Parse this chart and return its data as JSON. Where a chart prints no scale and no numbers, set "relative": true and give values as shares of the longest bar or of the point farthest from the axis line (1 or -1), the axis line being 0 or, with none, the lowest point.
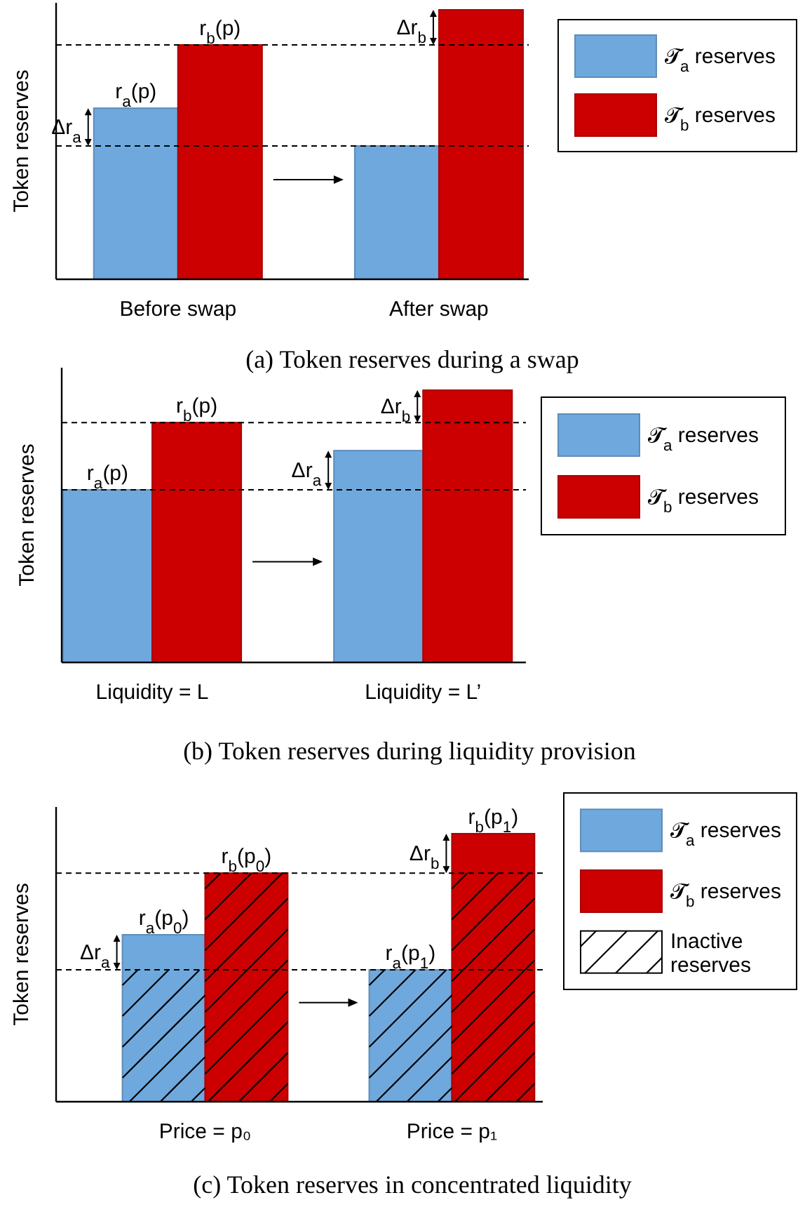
{
  "chart_data": [
    {
      "type": "bar",
      "title": "(a) Token reserves during a swap",
      "ylabel": "Token reserves",
      "relative": true,
      "tick_labels": "x",
      "legend": "right",
      "categories": [
        "Before swap",
        "After swap"
      ],
      "series": [
        {
          "name": "𝓣$_{a}$ reserves",
          "color": "#6fa8dc",
          "values": [
            0.635,
            0.495
          ]
        },
        {
          "name": "𝓣$_{b}$  reserves",
          "color": "#cc0000",
          "values": [
            0.87,
            1
          ]
        }
      ],
      "ref_lines": [
        {
          "axis": "y",
          "value": 0.87,
          "line_style": "dashed",
          "label": "Δr$_{b}$"
        },
        {
          "axis": "y",
          "value": 0.495,
          "line_style": "dashed",
          "label": "Δr$_{a}$"
        }
      ],
      "annotations": [
        {
          "text": "r$_{a}$(p)",
          "x": "Before swap",
          "y": 0.635
        },
        {
          "text": "r$_{b}$(p)",
          "x": "Before swap",
          "y": 0.87
        }
      ]
    },
    {
      "type": "bar",
      "title": "(b) Token reserves during liquidity provision",
      "ylabel": "Token reserves",
      "relative": true,
      "tick_labels": "x",
      "legend": "right",
      "categories": [
        "Liquidity = L",
        "Liquidity = L’"
      ],
      "series": [
        {
          "name": "𝓣$_{a}$ reserves",
          "color": "#6fa8dc",
          "values": [
            0.634,
            0.778
          ]
        },
        {
          "name": "𝓣$_{b}$ reserves",
          "color": "#cc0000",
          "values": [
            0.881,
            1
          ]
        }
      ],
      "ref_lines": [
        {
          "axis": "y",
          "value": 0.881,
          "line_style": "dashed",
          "label": "Δr$_{b}$"
        },
        {
          "axis": "y",
          "value": 0.634,
          "line_style": "dashed",
          "label": "Δr$_{a}$"
        }
      ],
      "annotations": [
        {
          "text": "r$_{a}$(p)",
          "x": "Liquidity = L",
          "y": 0.634
        },
        {
          "text": "r$_{b}$(p)",
          "x": "Liquidity = L",
          "y": 0.881
        }
      ]
    },
    {
      "type": "bar",
      "title": "(c) Token reserves in concentrated liquidity",
      "ylabel": "Token reserves",
      "relative": true,
      "tick_labels": "x",
      "legend": "right",
      "categories": [
        "Price = p₀",
        "Price = p₁"
      ],
      "series": [
        {
          "name": "𝓣$_{a}$ reserves",
          "color": "#6fa8dc",
          "values": [
            0.623,
            0.492
          ]
        },
        {
          "name": "𝓣$_{b}$ reserves",
          "color": "#cc0000",
          "values": [
            0.853,
            1
          ]
        }
      ],
      "ref_lines": [
        {
          "axis": "y",
          "value": 0.853,
          "line_style": "dashed",
          "label": "Δr$_{b}$"
        },
        {
          "axis": "y",
          "value": 0.492,
          "line_style": "dashed",
          "label": "Δr$_{a}$"
        }
      ],
      "annotations": [
        {
          "text": "r$_{a}$(p$_{0}$)",
          "x": "Price = p₀",
          "y": 0.623
        },
        {
          "text": "r$_{b}$(p$_{0}$)",
          "x": "Price = p₀",
          "y": 0.853
        },
        {
          "text": "r$_{a}$(p$_{1}$)",
          "x": "Price = p₁",
          "y": 0.492
        },
        {
          "text": "r$_{b}$(p$_{1}$)",
          "x": "Price = p₁",
          "y": 1
        },
        "Inactive reserves"
      ]
    }
  ]
}
